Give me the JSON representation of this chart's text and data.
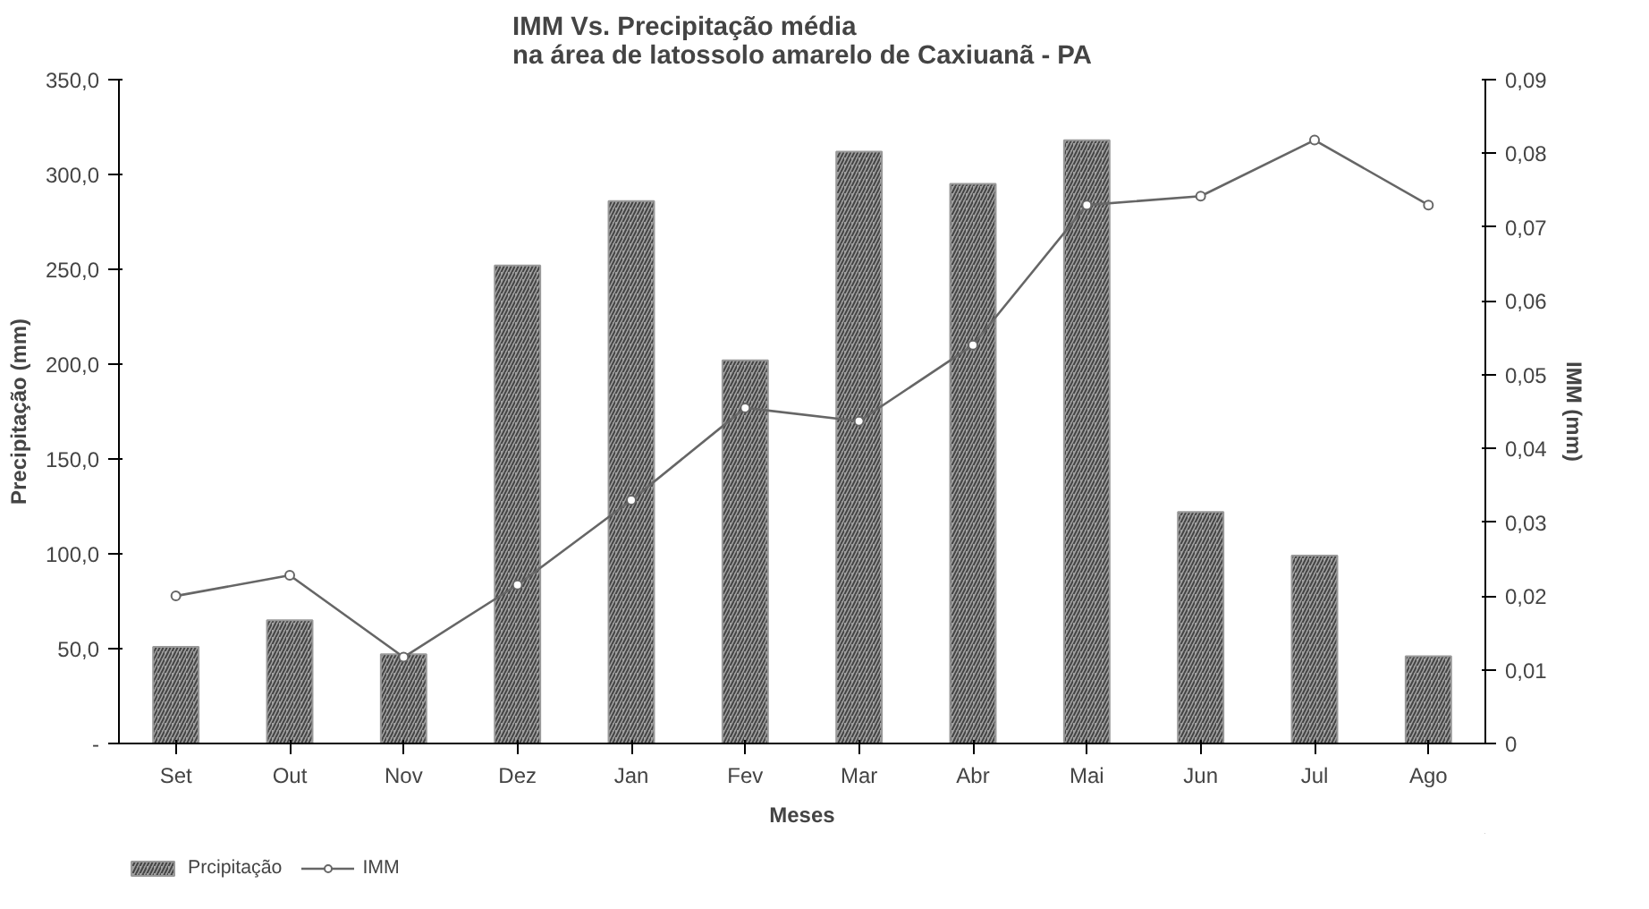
{
  "chart_data": {
    "type": "bar",
    "title": "IMM Vs. Precipitação média\nna área de latossolo amarelo de Caxiuanã - PA",
    "xlabel": "Meses",
    "ylabel": "Precipitação (mm)",
    "y2label": "IMM (mm)",
    "categories": [
      "Set",
      "Out",
      "Nov",
      "Dez",
      "Jan",
      "Fev",
      "Mar",
      "Abr",
      "Mai",
      "Jun",
      "Jul",
      "Ago"
    ],
    "series": [
      {
        "name": "Prcipitação",
        "color": "#a0a0a0",
        "values": [
          51,
          65,
          47,
          252,
          286,
          202,
          312,
          295,
          318,
          122,
          99,
          46
        ]
      },
      {
        "name": "IMM",
        "type": "line",
        "axis": "y2",
        "color": "#666666",
        "marker": "circle",
        "values": [
          0.02,
          0.0228,
          0.0117,
          0.0215,
          0.033,
          0.0455,
          0.0437,
          0.054,
          0.073,
          0.0742,
          0.0818,
          0.073
        ]
      }
    ],
    "ylim": [
      0,
      350
    ],
    "yticks": [
      {
        "value": 0,
        "label": "-"
      },
      {
        "value": 50,
        "label": "50,0"
      },
      {
        "value": 100,
        "label": "100,0"
      },
      {
        "value": 150,
        "label": "150,0"
      },
      {
        "value": 200,
        "label": "200,0"
      },
      {
        "value": 250,
        "label": "250,0"
      },
      {
        "value": 300,
        "label": "300,0"
      },
      {
        "value": 350,
        "label": "350,0"
      }
    ],
    "y2lim": [
      0,
      0.09
    ],
    "y2ticks": [
      {
        "value": 0,
        "label": "0"
      },
      {
        "value": 0.01,
        "label": "0,01"
      },
      {
        "value": 0.02,
        "label": "0,02"
      },
      {
        "value": 0.03,
        "label": "0,03"
      },
      {
        "value": 0.04,
        "label": "0,04"
      },
      {
        "value": 0.05,
        "label": "0,05"
      },
      {
        "value": 0.06,
        "label": "0,06"
      },
      {
        "value": 0.07,
        "label": "0,07"
      },
      {
        "value": 0.08,
        "label": "0,08"
      },
      {
        "value": 0.09,
        "label": "0,09"
      }
    ],
    "grid": false,
    "legend": "bottom left"
  }
}
